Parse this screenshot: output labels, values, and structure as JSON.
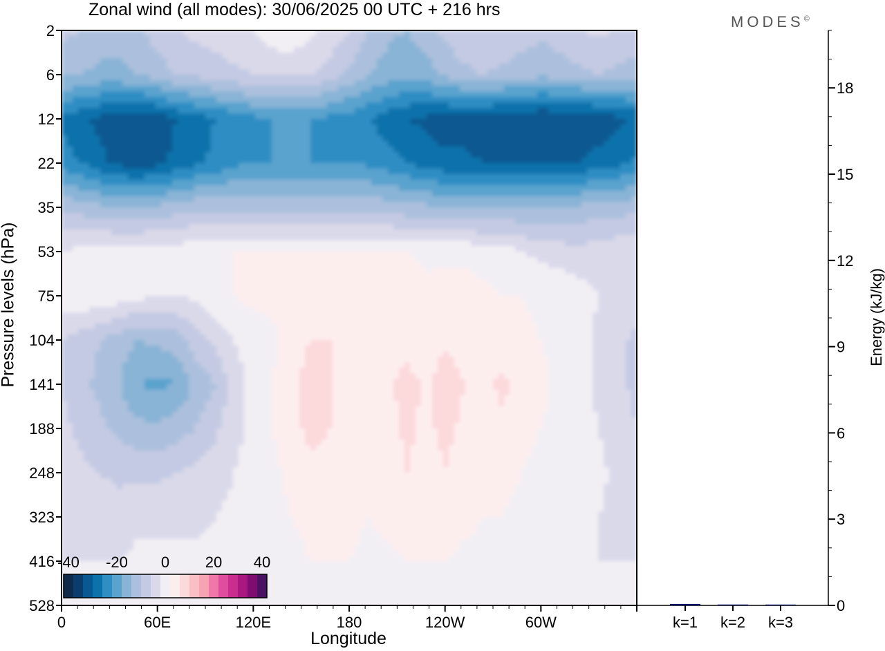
{
  "title": "Zonal wind (all modes):  30/06/2025  00 UTC  + 216 hrs",
  "logo_text": "MODES",
  "logo_mark": "©",
  "chart_data": [
    {
      "type": "heatmap",
      "title": "Zonal wind (all modes):  30/06/2025  00 UTC  + 216 hrs",
      "xlabel": "Longitude",
      "ylabel": "Pressure levels (hPa)",
      "x_ticks": [
        "0",
        "60E",
        "120E",
        "180",
        "120W",
        "60W"
      ],
      "y_ticks": [
        "2",
        "6",
        "12",
        "22",
        "35",
        "53",
        "75",
        "104",
        "141",
        "188",
        "248",
        "323",
        "416",
        "528"
      ],
      "y_scale": "log",
      "y_inverted": true,
      "colorbar": {
        "labels": [
          "-40",
          "-20",
          "0",
          "20",
          "40"
        ],
        "colors": [
          "#102a4a",
          "#0b3d6c",
          "#085891",
          "#0b72ab",
          "#2f8ec3",
          "#5aa3ce",
          "#89b4d6",
          "#acc0dd",
          "#c4cae3",
          "#dad9ea",
          "#f2eff4",
          "#fdeeee",
          "#fcd9db",
          "#f9bfc5",
          "#f6a4b2",
          "#ef78a9",
          "#e04c9e",
          "#c92e8f",
          "#a8187f",
          "#7f0d6f",
          "#4b1264"
        ]
      },
      "field_rows": [
        [
          -9,
          -10,
          -12,
          -12,
          -11,
          -8,
          -6,
          -5,
          -4,
          -3,
          -2,
          0,
          1,
          -1,
          -3,
          -6,
          -10,
          -13,
          -14,
          -12,
          -9,
          -7,
          -6,
          -7,
          -8,
          -9,
          -8,
          -6,
          -5,
          -6,
          -7
        ],
        [
          -13,
          -14,
          -15,
          -15,
          -14,
          -12,
          -10,
          -9,
          -8,
          -7,
          -6,
          -5,
          -5,
          -6,
          -8,
          -11,
          -14,
          -16,
          -17,
          -16,
          -13,
          -11,
          -10,
          -11,
          -12,
          -13,
          -12,
          -11,
          -10,
          -11,
          -12
        ],
        [
          -27,
          -29,
          -31,
          -32,
          -33,
          -32,
          -30,
          -28,
          -26,
          -25,
          -23,
          -22,
          -22,
          -22,
          -23,
          -24,
          -26,
          -28,
          -30,
          -31,
          -32,
          -32,
          -33,
          -33,
          -33,
          -34,
          -34,
          -34,
          -33,
          -31,
          -29
        ],
        [
          -24,
          -26,
          -29,
          -31,
          -32,
          -31,
          -29,
          -27,
          -25,
          -23,
          -22,
          -22,
          -22,
          -22,
          -22,
          -22,
          -23,
          -24,
          -26,
          -28,
          -29,
          -29,
          -30,
          -30,
          -30,
          -30,
          -30,
          -30,
          -28,
          -27,
          -25
        ],
        [
          -11,
          -12,
          -13,
          -14,
          -14,
          -13,
          -12,
          -11,
          -11,
          -11,
          -11,
          -11,
          -11,
          -11,
          -11,
          -11,
          -11,
          -12,
          -13,
          -13,
          -14,
          -14,
          -14,
          -14,
          -14,
          -14,
          -13,
          -13,
          -12,
          -12,
          -11
        ],
        [
          -2,
          -1,
          0,
          0,
          0,
          0,
          0,
          1,
          1,
          2,
          2,
          2,
          2,
          2,
          2,
          2,
          2,
          2,
          2,
          1,
          1,
          1,
          0,
          0,
          -2,
          -3,
          -4,
          -5,
          -4,
          -3,
          -2
        ],
        [
          1,
          1,
          1,
          0,
          -1,
          -2,
          -2,
          -1,
          1,
          2,
          3,
          3,
          4,
          4,
          4,
          4,
          4,
          4,
          5,
          3,
          4,
          4,
          3,
          2,
          2,
          1,
          1,
          0,
          -2,
          -3,
          -4
        ],
        [
          -6,
          -8,
          -10,
          -12,
          -14,
          -13,
          -12,
          -8,
          -5,
          -2,
          0,
          1,
          4,
          6,
          6,
          4,
          4,
          4,
          4,
          3,
          5,
          4,
          4,
          3,
          3,
          2,
          1,
          0,
          -3,
          -5,
          -7
        ],
        [
          -6,
          -9,
          -11,
          -14,
          -18,
          -19,
          -18,
          -13,
          -10,
          -4,
          -1,
          2,
          5,
          8,
          6,
          4,
          4,
          5,
          8,
          5,
          9,
          6,
          5,
          7,
          4,
          3,
          1,
          0,
          -3,
          -5,
          -7
        ],
        [
          -5,
          -7,
          -9,
          -11,
          -13,
          -13,
          -12,
          -10,
          -7,
          -3,
          -1,
          2,
          5,
          7,
          6,
          4,
          3,
          4,
          7,
          5,
          7,
          5,
          4,
          5,
          3,
          2,
          1,
          0,
          -2,
          -4,
          -6
        ],
        [
          -4,
          -5,
          -6,
          -7,
          -7,
          -7,
          -6,
          -5,
          -4,
          -2,
          -1,
          1,
          3,
          5,
          5,
          4,
          3,
          4,
          6,
          4,
          6,
          4,
          3,
          3,
          2,
          1,
          0,
          0,
          -1,
          -3,
          -4
        ],
        [
          -3,
          -4,
          -4,
          -4,
          -3,
          -3,
          -3,
          -3,
          -2,
          -1,
          0,
          1,
          2,
          3,
          3,
          3,
          2,
          3,
          4,
          3,
          4,
          3,
          2,
          2,
          1,
          0,
          0,
          -1,
          -2,
          -3,
          -3
        ],
        [
          -2,
          -2,
          -2,
          -2,
          -1,
          -1,
          -1,
          -1,
          -1,
          0,
          0,
          1,
          1,
          2,
          2,
          2,
          1,
          1,
          2,
          2,
          2,
          1,
          1,
          1,
          0,
          0,
          -1,
          -1,
          -2,
          -2,
          -2
        ],
        [
          -1,
          -1,
          -1,
          -1,
          0,
          0,
          0,
          0,
          0,
          0,
          0,
          0,
          1,
          1,
          1,
          1,
          1,
          1,
          1,
          1,
          1,
          1,
          1,
          0,
          0,
          0,
          -1,
          -1,
          -1,
          -1,
          -1
        ]
      ]
    },
    {
      "type": "bar",
      "ylabel": "Energy (kJ/kg)",
      "categories": [
        "k=1",
        "k=2",
        "k=3"
      ],
      "values": [
        0.05,
        0.03,
        0.02
      ],
      "ylim": [
        0,
        20
      ],
      "y_ticks": [
        0,
        3,
        6,
        9,
        12,
        15,
        18
      ],
      "bar_color": "#000066"
    }
  ]
}
